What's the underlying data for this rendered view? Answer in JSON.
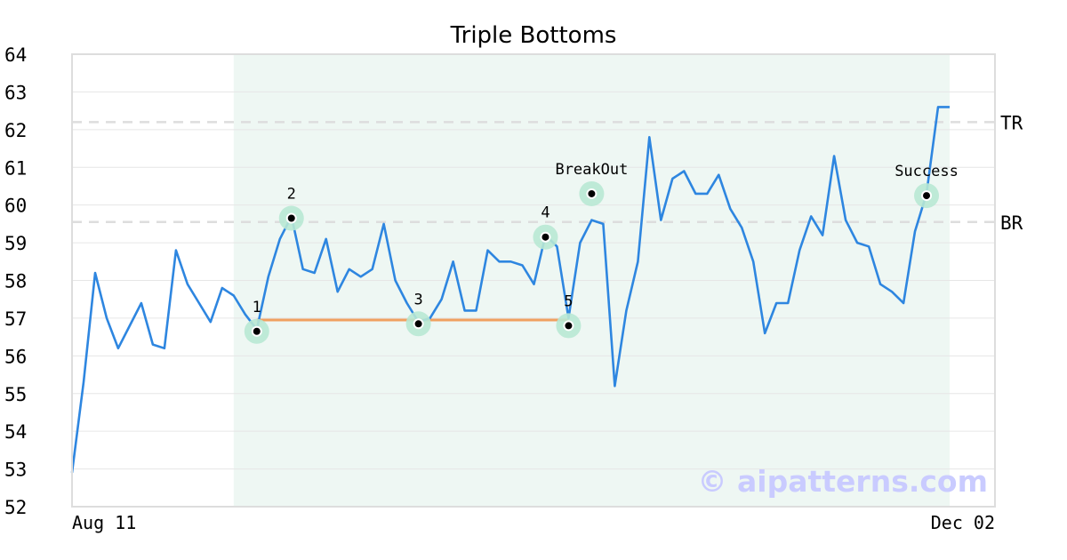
{
  "chart_data": {
    "type": "line",
    "title": "Triple Bottoms",
    "xlabel": "",
    "ylabel": "",
    "ylim": [
      52,
      64
    ],
    "y_ticks": [
      "52",
      "53",
      "54",
      "55",
      "56",
      "57",
      "58",
      "59",
      "60",
      "61",
      "62",
      "63",
      "64"
    ],
    "x_tick_labels": [
      "Aug 11",
      "Dec 02"
    ],
    "grid": true,
    "colors": {
      "line": "#2e86e0",
      "highlight": "#eef7f3",
      "marker_halo": "#b8e8d4",
      "bottom_line": "#f0a060",
      "reference_line": "#dddddd"
    },
    "series": [
      {
        "values": [
          52.9,
          55.3,
          58.2,
          57.0,
          56.2,
          56.8,
          57.4,
          56.3,
          56.2,
          58.8,
          57.9,
          57.4,
          56.9,
          57.8,
          57.6,
          57.1,
          56.7,
          58.1,
          59.1,
          59.7,
          58.3,
          58.2,
          59.1,
          57.7,
          58.3,
          58.1,
          58.3,
          59.5,
          58.0,
          57.4,
          56.9,
          57.0,
          57.5,
          58.5,
          57.2,
          57.2,
          58.8,
          58.5,
          58.5,
          58.4,
          57.9,
          59.2,
          58.9,
          57.0,
          59.0,
          59.6,
          59.5,
          55.2,
          57.2,
          58.5,
          61.8,
          59.6,
          60.7,
          60.9,
          60.3,
          60.3,
          60.8,
          59.9,
          59.4,
          58.5,
          56.6,
          57.4,
          57.4,
          58.8,
          59.7,
          59.2,
          61.3,
          59.6,
          59.0,
          58.9,
          57.9,
          57.7,
          57.4,
          59.3,
          60.3,
          62.6,
          62.6
        ]
      }
    ],
    "highlight_range": {
      "start_index": 14,
      "end_index": 76
    },
    "reference_lines": [
      {
        "label": "TR",
        "value": 62.2
      },
      {
        "label": "BR",
        "value": 59.55
      }
    ],
    "bottom_line": {
      "start_index": 16,
      "end_index": 43,
      "value": 56.95
    },
    "annotations": [
      {
        "label": "1",
        "index": 16,
        "value": 56.65
      },
      {
        "label": "2",
        "index": 19,
        "value": 59.65
      },
      {
        "label": "3",
        "index": 30,
        "value": 56.85
      },
      {
        "label": "4",
        "index": 41,
        "value": 59.15
      },
      {
        "label": "5",
        "index": 43,
        "value": 56.8
      },
      {
        "label": "BreakOut",
        "index": 45,
        "value": 60.3
      },
      {
        "label": "Success",
        "index": 74,
        "value": 60.25
      }
    ]
  },
  "watermark": "© aipatterns.com"
}
